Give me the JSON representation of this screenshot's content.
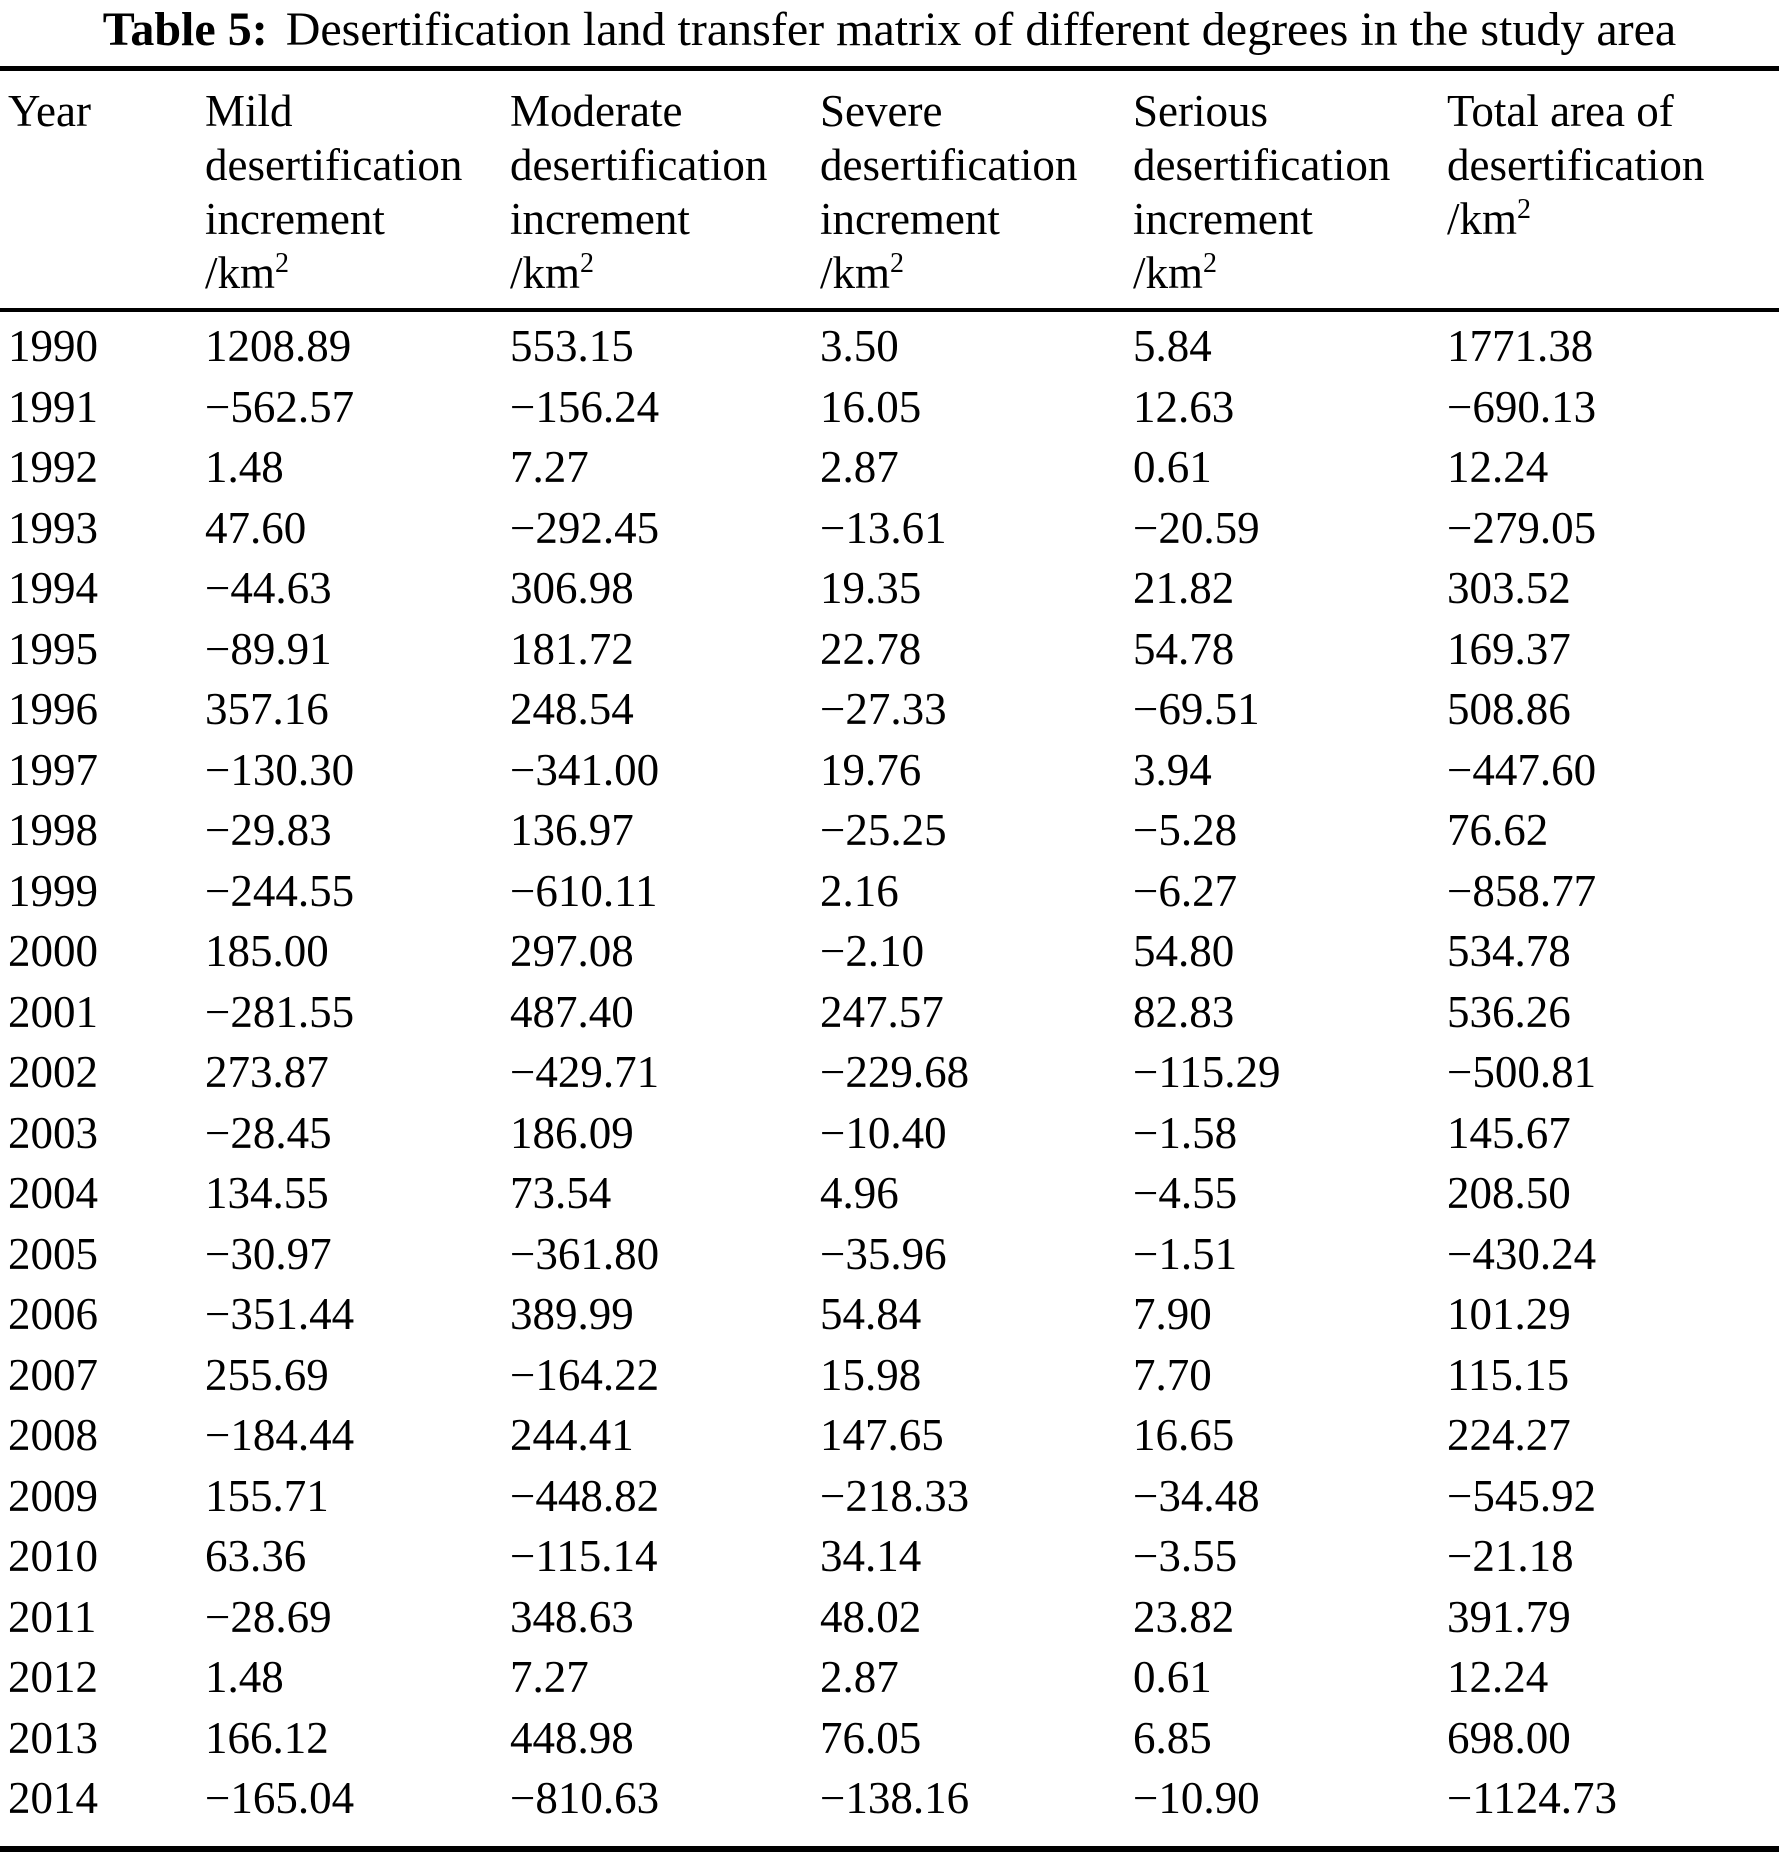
{
  "title": {
    "label": "Table 5:",
    "text": "Desertification land transfer matrix of different degrees in the study area"
  },
  "table": {
    "columns": [
      {
        "lines": [
          "Year"
        ]
      },
      {
        "lines": [
          "Mild",
          "desertification",
          "increment"
        ],
        "unit_prefix": "/km",
        "unit_exponent": "2"
      },
      {
        "lines": [
          "Moderate",
          "desertification",
          "increment"
        ],
        "unit_prefix": "/km",
        "unit_exponent": "2"
      },
      {
        "lines": [
          "Severe",
          "desertification",
          "increment"
        ],
        "unit_prefix": "/km",
        "unit_exponent": "2"
      },
      {
        "lines": [
          "Serious",
          "desertification",
          "increment"
        ],
        "unit_prefix": "/km",
        "unit_exponent": "2"
      },
      {
        "lines": [
          "Total area of",
          "desertification"
        ],
        "unit_prefix": "/km",
        "unit_exponent": "2"
      }
    ],
    "rows": [
      {
        "cells": [
          "1990",
          "1208.89",
          "553.15",
          "3.50",
          "5.84",
          "1771.38"
        ]
      },
      {
        "cells": [
          "1991",
          "−562.57",
          "−156.24",
          "16.05",
          "12.63",
          "−690.13"
        ]
      },
      {
        "cells": [
          "1992",
          "1.48",
          "7.27",
          "2.87",
          "0.61",
          "12.24"
        ]
      },
      {
        "cells": [
          "1993",
          "47.60",
          "−292.45",
          "−13.61",
          "−20.59",
          "−279.05"
        ]
      },
      {
        "cells": [
          "1994",
          "−44.63",
          "306.98",
          "19.35",
          "21.82",
          "303.52"
        ]
      },
      {
        "cells": [
          "1995",
          "−89.91",
          "181.72",
          "22.78",
          "54.78",
          "169.37"
        ]
      },
      {
        "cells": [
          "1996",
          "357.16",
          "248.54",
          "−27.33",
          "−69.51",
          "508.86"
        ]
      },
      {
        "cells": [
          "1997",
          "−130.30",
          "−341.00",
          "19.76",
          "3.94",
          "−447.60"
        ]
      },
      {
        "cells": [
          "1998",
          "−29.83",
          "136.97",
          "−25.25",
          "−5.28",
          "76.62"
        ]
      },
      {
        "cells": [
          "1999",
          "−244.55",
          "−610.11",
          "2.16",
          "−6.27",
          "−858.77"
        ]
      },
      {
        "cells": [
          "2000",
          "185.00",
          "297.08",
          "−2.10",
          "54.80",
          "534.78"
        ]
      },
      {
        "cells": [
          "2001",
          "−281.55",
          "487.40",
          "247.57",
          "82.83",
          "536.26"
        ]
      },
      {
        "cells": [
          "2002",
          "273.87",
          "−429.71",
          "−229.68",
          "−115.29",
          "−500.81"
        ]
      },
      {
        "cells": [
          "2003",
          "−28.45",
          "186.09",
          "−10.40",
          "−1.58",
          "145.67"
        ]
      },
      {
        "cells": [
          "2004",
          "134.55",
          "73.54",
          "4.96",
          "−4.55",
          "208.50"
        ]
      },
      {
        "cells": [
          "2005",
          "−30.97",
          "−361.80",
          "−35.96",
          "−1.51",
          "−430.24"
        ]
      },
      {
        "cells": [
          "2006",
          "−351.44",
          "389.99",
          "54.84",
          "7.90",
          "101.29"
        ]
      },
      {
        "cells": [
          "2007",
          "255.69",
          "−164.22",
          "15.98",
          "7.70",
          "115.15"
        ]
      },
      {
        "cells": [
          "2008",
          "−184.44",
          "244.41",
          "147.65",
          "16.65",
          "224.27"
        ]
      },
      {
        "cells": [
          "2009",
          "155.71",
          "−448.82",
          "−218.33",
          "−34.48",
          "−545.92"
        ]
      },
      {
        "cells": [
          "2010",
          "63.36",
          "−115.14",
          "34.14",
          "−3.55",
          "−21.18"
        ]
      },
      {
        "cells": [
          "2011",
          "−28.69",
          "348.63",
          "48.02",
          "23.82",
          "391.79"
        ]
      },
      {
        "cells": [
          "2012",
          "1.48",
          "7.27",
          "2.87",
          "0.61",
          "12.24"
        ]
      },
      {
        "cells": [
          "2013",
          "166.12",
          "448.98",
          "76.05",
          "6.85",
          "698.00"
        ]
      },
      {
        "cells": [
          "2014",
          "−165.04",
          "−810.63",
          "−138.16",
          "−10.90",
          "−1124.73"
        ]
      }
    ]
  },
  "colors": {
    "text": "#000000",
    "background": "#ffffff",
    "rule": "#000000"
  }
}
